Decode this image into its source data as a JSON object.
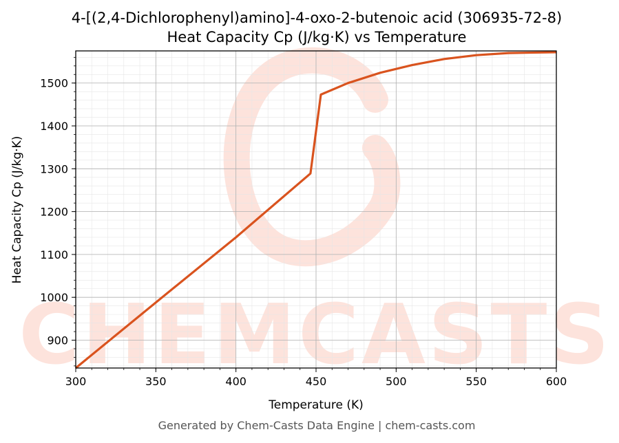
{
  "chart_data": {
    "type": "line",
    "title": "4-[(2,4-Dichlorophenyl)amino]-4-oxo-2-butenoic acid (306935-72-8)",
    "subtitle": "Heat Capacity Cp (J/kg·K) vs Temperature",
    "xlabel": "Temperature (K)",
    "ylabel": "Heat Capacity Cp (J/kg·K)",
    "xlim": [
      300,
      600
    ],
    "ylim": [
      835,
      1575
    ],
    "xticks": [
      300,
      350,
      400,
      450,
      500,
      550,
      600
    ],
    "yticks": [
      900,
      1000,
      1100,
      1200,
      1300,
      1400,
      1500
    ],
    "grid": true,
    "line_color": "#d9531e",
    "series": [
      {
        "values": [
          {
            "x": 300,
            "y": 835
          },
          {
            "x": 350,
            "y": 988
          },
          {
            "x": 400,
            "y": 1140
          },
          {
            "x": 446.5,
            "y": 1289
          },
          {
            "x": 453,
            "y": 1473
          },
          {
            "x": 470,
            "y": 1500
          },
          {
            "x": 490,
            "y": 1524
          },
          {
            "x": 510,
            "y": 1542
          },
          {
            "x": 530,
            "y": 1556
          },
          {
            "x": 550,
            "y": 1565
          },
          {
            "x": 570,
            "y": 1570
          },
          {
            "x": 600,
            "y": 1572
          }
        ]
      }
    ]
  },
  "footer": "Generated by Chem-Casts Data Engine | chem-casts.com",
  "watermark": "CHEMCASTS"
}
